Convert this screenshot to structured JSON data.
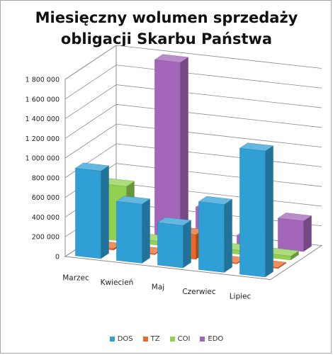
{
  "chart_data": {
    "type": "bar3d",
    "title_lines": [
      "Miesięczny wolumen sprzedaży",
      "obligacji Skarbu Państwa"
    ],
    "categories": [
      "Marzec",
      "Kwiecień",
      "Maj",
      "Czerwiec",
      "Lipiec"
    ],
    "series": [
      {
        "name": "DOS",
        "color": "#2f9fd6",
        "values": [
          890000,
          600000,
          430000,
          690000,
          1280000
        ]
      },
      {
        "name": "TZ",
        "color": "#e8692a",
        "values": [
          15000,
          10000,
          250000,
          10000,
          10000
        ]
      },
      {
        "name": "COI",
        "color": "#92d050",
        "values": [
          560000,
          40000,
          40000,
          40000,
          40000
        ]
      },
      {
        "name": "EDO",
        "color": "#a366b8",
        "values": [
          40000,
          1780000,
          330000,
          90000,
          310000
        ]
      }
    ],
    "yticks": [
      "0",
      "200 000",
      "400 000",
      "600 000",
      "800 000",
      "1 000 000",
      "1 200 000",
      "1 400 000",
      "1 600 000",
      "1 800 000"
    ],
    "ylim": [
      0,
      1800000
    ],
    "legend_position": "bottom",
    "grid": true
  }
}
